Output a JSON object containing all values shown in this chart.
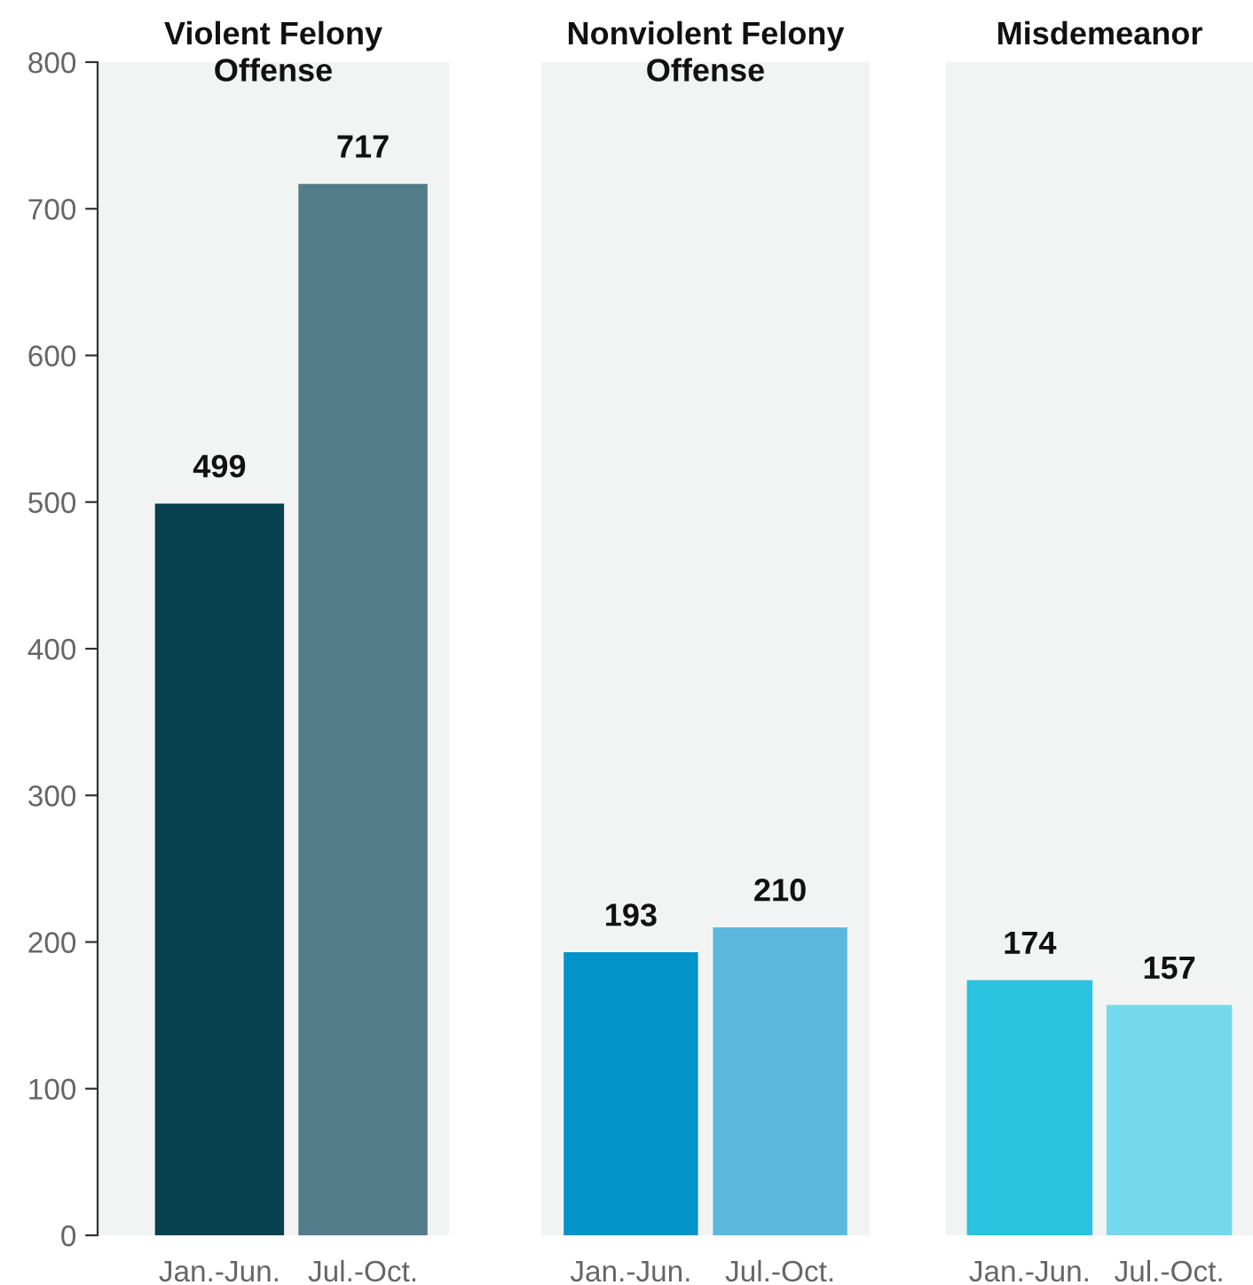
{
  "chart_data": [
    {
      "type": "bar",
      "title": "Violent Felony\nOffense",
      "categories": [
        "Jan.-Jun.",
        "Jul.-Oct."
      ],
      "values": [
        499,
        717
      ],
      "colors": [
        "#08414f",
        "#527d89"
      ],
      "ylim": [
        0,
        800
      ],
      "yticks": [
        0,
        100,
        200,
        300,
        400,
        500,
        600,
        700,
        800
      ],
      "data_labels": true,
      "grid": false
    },
    {
      "type": "bar",
      "title": "Nonviolent Felony\nOffense",
      "categories": [
        "Jan.-Jun.",
        "Jul.-Oct."
      ],
      "values": [
        193,
        210
      ],
      "colors": [
        "#0293c9",
        "#5db8de"
      ],
      "ylim": [
        0,
        800
      ],
      "data_labels": true,
      "grid": false,
      "tick_labels": "x"
    },
    {
      "type": "bar",
      "title": "Misdemeanor",
      "categories": [
        "Jan.-Jun.",
        "Jul.-Oct."
      ],
      "values": [
        174,
        157
      ],
      "colors": [
        "#2bc3e0",
        "#75d8ec"
      ],
      "ylim": [
        0,
        800
      ],
      "data_labels": true,
      "grid": false,
      "tick_labels": "x"
    }
  ]
}
